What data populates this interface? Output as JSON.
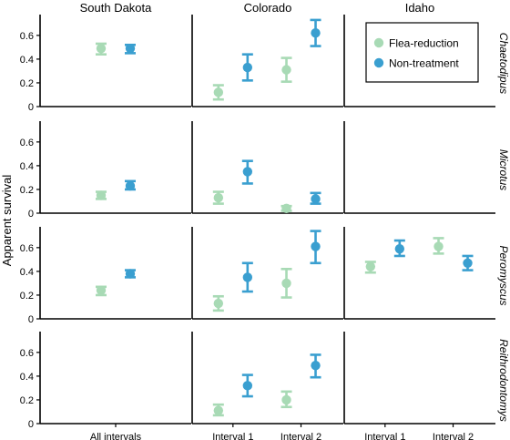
{
  "chart_data": {
    "type": "scatter",
    "ylabel": "Apparent survival",
    "ylim": [
      0,
      0.76
    ],
    "yticks": [
      0,
      0.2,
      0.4,
      0.6
    ],
    "tick_labels": [
      "0",
      "0.2",
      "0.4",
      "0.6"
    ],
    "columns": [
      {
        "name": "South Dakota",
        "x_labels": [
          "All intervals"
        ]
      },
      {
        "name": "Colorado",
        "x_labels": [
          "Interval 1",
          "Interval 2"
        ]
      },
      {
        "name": "Idaho",
        "x_labels": [
          "Interval 1",
          "Interval 2"
        ]
      }
    ],
    "rows": [
      "Chaetodipus",
      "Microtus",
      "Peromyscus",
      "Reithrodontomys"
    ],
    "series": [
      {
        "name": "Flea-reduction",
        "color": "#a8dab5"
      },
      {
        "name": "Non-treatment",
        "color": "#3a9fd0"
      }
    ],
    "legend": {
      "position": "top-right"
    },
    "points": [
      {
        "row": 0,
        "col": 0,
        "interval": 0,
        "series": 0,
        "y": 0.49,
        "low": 0.44,
        "high": 0.53
      },
      {
        "row": 0,
        "col": 0,
        "interval": 0,
        "series": 1,
        "y": 0.49,
        "low": 0.45,
        "high": 0.52
      },
      {
        "row": 0,
        "col": 1,
        "interval": 0,
        "series": 0,
        "y": 0.12,
        "low": 0.06,
        "high": 0.18
      },
      {
        "row": 0,
        "col": 1,
        "interval": 0,
        "series": 1,
        "y": 0.33,
        "low": 0.22,
        "high": 0.44
      },
      {
        "row": 0,
        "col": 1,
        "interval": 1,
        "series": 0,
        "y": 0.31,
        "low": 0.21,
        "high": 0.41
      },
      {
        "row": 0,
        "col": 1,
        "interval": 1,
        "series": 1,
        "y": 0.62,
        "low": 0.51,
        "high": 0.73
      },
      {
        "row": 1,
        "col": 0,
        "interval": 0,
        "series": 0,
        "y": 0.15,
        "low": 0.12,
        "high": 0.18
      },
      {
        "row": 1,
        "col": 0,
        "interval": 0,
        "series": 1,
        "y": 0.23,
        "low": 0.2,
        "high": 0.27
      },
      {
        "row": 1,
        "col": 1,
        "interval": 0,
        "series": 0,
        "y": 0.13,
        "low": 0.08,
        "high": 0.18
      },
      {
        "row": 1,
        "col": 1,
        "interval": 0,
        "series": 1,
        "y": 0.35,
        "low": 0.25,
        "high": 0.44
      },
      {
        "row": 1,
        "col": 1,
        "interval": 1,
        "series": 0,
        "y": 0.04,
        "low": 0.02,
        "high": 0.06
      },
      {
        "row": 1,
        "col": 1,
        "interval": 1,
        "series": 1,
        "y": 0.12,
        "low": 0.08,
        "high": 0.17
      },
      {
        "row": 2,
        "col": 0,
        "interval": 0,
        "series": 0,
        "y": 0.24,
        "low": 0.2,
        "high": 0.27
      },
      {
        "row": 2,
        "col": 0,
        "interval": 0,
        "series": 1,
        "y": 0.38,
        "low": 0.35,
        "high": 0.41
      },
      {
        "row": 2,
        "col": 1,
        "interval": 0,
        "series": 0,
        "y": 0.13,
        "low": 0.07,
        "high": 0.19
      },
      {
        "row": 2,
        "col": 1,
        "interval": 0,
        "series": 1,
        "y": 0.35,
        "low": 0.23,
        "high": 0.47
      },
      {
        "row": 2,
        "col": 1,
        "interval": 1,
        "series": 0,
        "y": 0.3,
        "low": 0.18,
        "high": 0.42
      },
      {
        "row": 2,
        "col": 1,
        "interval": 1,
        "series": 1,
        "y": 0.61,
        "low": 0.47,
        "high": 0.74
      },
      {
        "row": 2,
        "col": 2,
        "interval": 0,
        "series": 0,
        "y": 0.44,
        "low": 0.39,
        "high": 0.48
      },
      {
        "row": 2,
        "col": 2,
        "interval": 0,
        "series": 1,
        "y": 0.59,
        "low": 0.53,
        "high": 0.66
      },
      {
        "row": 2,
        "col": 2,
        "interval": 1,
        "series": 0,
        "y": 0.61,
        "low": 0.55,
        "high": 0.68
      },
      {
        "row": 2,
        "col": 2,
        "interval": 1,
        "series": 1,
        "y": 0.47,
        "low": 0.41,
        "high": 0.53
      },
      {
        "row": 3,
        "col": 1,
        "interval": 0,
        "series": 0,
        "y": 0.11,
        "low": 0.07,
        "high": 0.16
      },
      {
        "row": 3,
        "col": 1,
        "interval": 0,
        "series": 1,
        "y": 0.32,
        "low": 0.23,
        "high": 0.41
      },
      {
        "row": 3,
        "col": 1,
        "interval": 1,
        "series": 0,
        "y": 0.2,
        "low": 0.14,
        "high": 0.27
      },
      {
        "row": 3,
        "col": 1,
        "interval": 1,
        "series": 1,
        "y": 0.49,
        "low": 0.39,
        "high": 0.58
      }
    ]
  }
}
